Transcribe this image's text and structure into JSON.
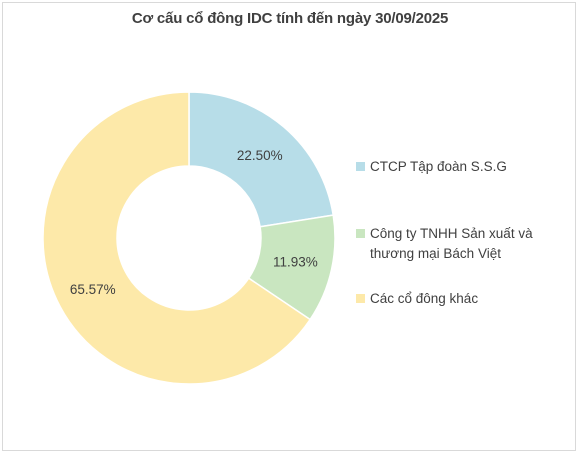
{
  "chart_data": {
    "type": "pie",
    "variant": "donut",
    "title": "Cơ cấu cổ đông IDC tính đến ngày 30/09/2025",
    "series": [
      {
        "name": "CTCP Tập đoàn S.S.G",
        "value": 22.5,
        "label": "22.50%",
        "color": "#b7dde8"
      },
      {
        "name": "Công ty TNHH Sản xuất và thương mại Bách Việt",
        "value": 11.93,
        "label": "11.93%",
        "color": "#c9e6c0"
      },
      {
        "name": "Các cổ đông khác",
        "value": 65.57,
        "label": "65.57%",
        "color": "#fde9a9"
      }
    ],
    "legend_position": "right"
  }
}
